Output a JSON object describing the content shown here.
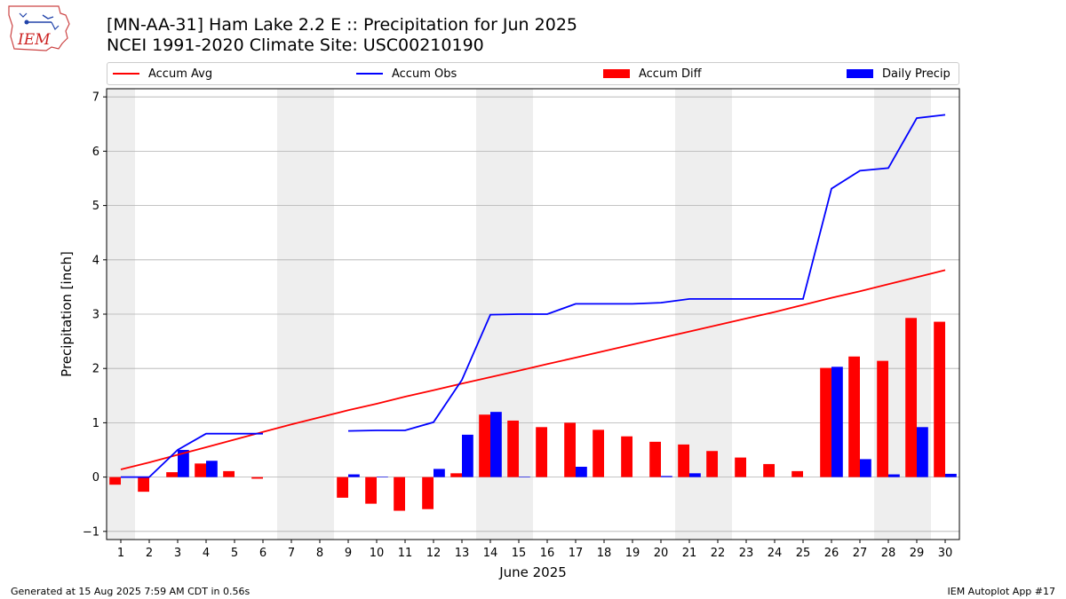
{
  "header": {
    "title_line1": "[MN-AA-31] Ham Lake 2.2 E :: Precipitation for Jun 2025",
    "title_line2": "NCEI 1991-2020 Climate Site: USC00210190",
    "logo_text": "IEM"
  },
  "footer": {
    "left": "Generated at 15 Aug 2025 7:59 AM CDT in 0.56s",
    "right": "IEM Autoplot App #17"
  },
  "colors": {
    "accum_avg": "#ff0000",
    "accum_obs": "#0000ff",
    "accum_diff": "#ff0000",
    "daily_precip": "#0000ff",
    "weekend_shade": "#eeeeee",
    "grid": "#b0b0b0"
  },
  "chart_data": {
    "type": "bar",
    "xlabel": "June 2025",
    "ylabel": "Precipitation [inch]",
    "ylim": [
      -1.15,
      7.15
    ],
    "yticks": [
      -1,
      0,
      1,
      2,
      3,
      4,
      5,
      6,
      7
    ],
    "grid": true,
    "legend_placement": "top",
    "x": [
      1,
      2,
      3,
      4,
      5,
      6,
      7,
      8,
      9,
      10,
      11,
      12,
      13,
      14,
      15,
      16,
      17,
      18,
      19,
      20,
      21,
      22,
      23,
      24,
      25,
      26,
      27,
      28,
      29,
      30
    ],
    "weekend_ranges": [
      [
        1,
        1
      ],
      [
        7,
        8
      ],
      [
        14,
        15
      ],
      [
        21,
        22
      ],
      [
        28,
        29
      ]
    ],
    "series": [
      {
        "name": "Accum Avg",
        "kind": "line",
        "values": [
          0.14,
          0.27,
          0.41,
          0.55,
          0.69,
          0.83,
          0.97,
          1.1,
          1.23,
          1.35,
          1.48,
          1.6,
          1.72,
          1.84,
          1.96,
          2.08,
          2.2,
          2.32,
          2.44,
          2.56,
          2.68,
          2.8,
          2.92,
          3.04,
          3.17,
          3.3,
          3.42,
          3.55,
          3.68,
          3.81
        ]
      },
      {
        "name": "Accum Obs",
        "kind": "line",
        "values": [
          0.0,
          0.0,
          0.5,
          0.8,
          0.8,
          0.8,
          null,
          null,
          0.85,
          0.86,
          0.86,
          1.01,
          1.79,
          2.99,
          3.0,
          3.0,
          3.19,
          3.19,
          3.19,
          3.21,
          3.28,
          3.28,
          3.28,
          3.28,
          3.28,
          5.31,
          5.64,
          5.69,
          6.61,
          6.67
        ]
      },
      {
        "name": "Accum Diff",
        "kind": "bar",
        "values": [
          -0.14,
          -0.27,
          0.09,
          0.25,
          0.11,
          -0.03,
          null,
          null,
          -0.38,
          -0.49,
          -0.62,
          -0.59,
          0.07,
          1.15,
          1.04,
          0.92,
          1.0,
          0.87,
          0.75,
          0.65,
          0.6,
          0.48,
          0.36,
          0.24,
          0.11,
          2.01,
          2.22,
          2.14,
          2.93,
          2.86
        ]
      },
      {
        "name": "Daily Precip",
        "kind": "bar",
        "values": [
          0.0,
          0.0,
          0.5,
          0.3,
          0.0,
          0.0,
          null,
          null,
          0.05,
          0.01,
          0.0,
          0.15,
          0.78,
          1.2,
          0.01,
          0.0,
          0.19,
          0.0,
          0.0,
          0.02,
          0.07,
          0.0,
          0.0,
          0.0,
          0.0,
          2.03,
          0.33,
          0.05,
          0.92,
          0.06
        ]
      }
    ]
  }
}
